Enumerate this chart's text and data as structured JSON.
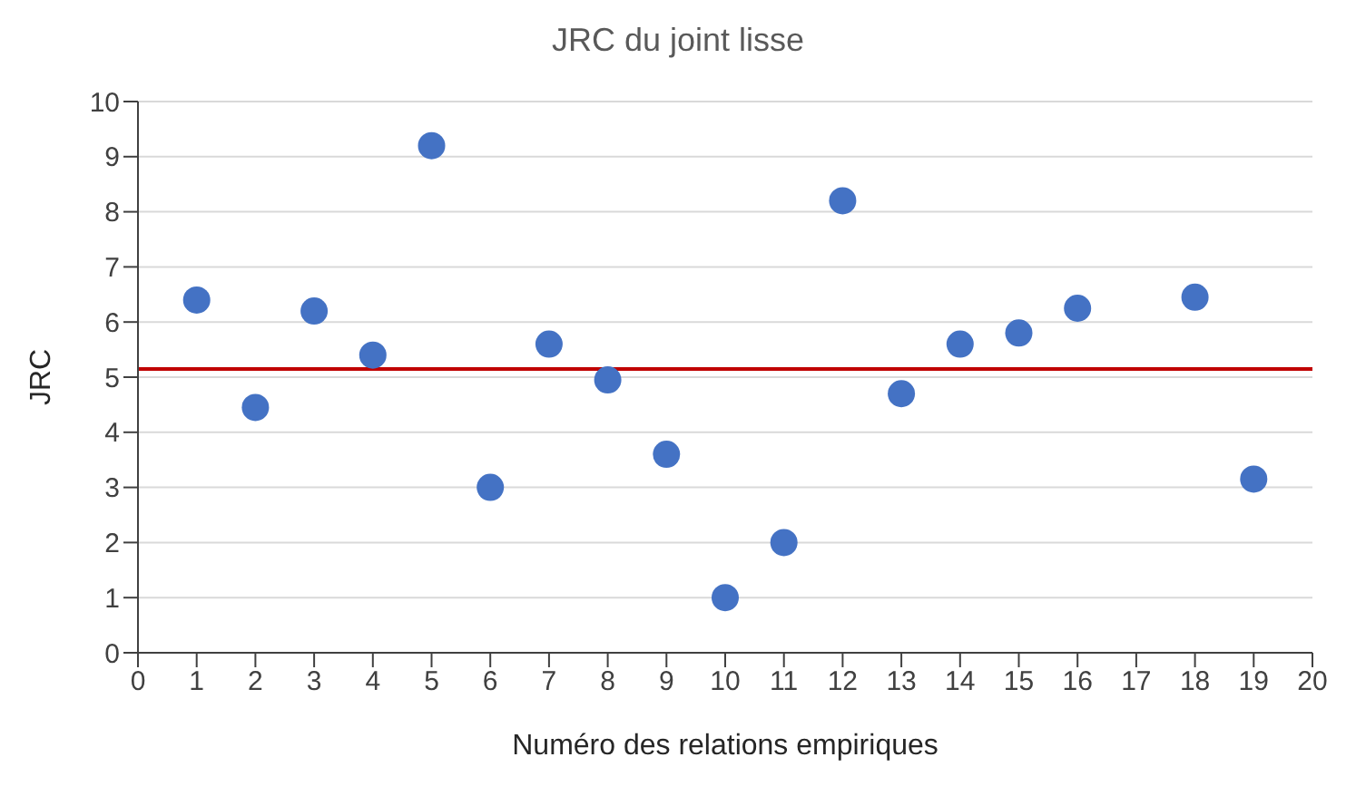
{
  "chart_data": {
    "type": "scatter",
    "title": "JRC du joint lisse",
    "xlabel": "Numéro des relations empiriques",
    "ylabel": "JRC",
    "x": [
      1,
      2,
      3,
      4,
      5,
      6,
      7,
      8,
      9,
      10,
      11,
      12,
      13,
      14,
      15,
      16,
      18,
      19
    ],
    "values": [
      6.4,
      4.45,
      6.2,
      5.4,
      9.2,
      3.0,
      5.6,
      4.95,
      3.6,
      1.0,
      2.0,
      8.2,
      4.7,
      5.6,
      5.8,
      6.25,
      6.45,
      3.15
    ],
    "color": "#4472c4",
    "marker": "circle",
    "xlim": [
      0,
      20
    ],
    "xticks": [
      0,
      1,
      2,
      3,
      4,
      5,
      6,
      7,
      8,
      9,
      10,
      11,
      12,
      13,
      14,
      15,
      16,
      17,
      18,
      19,
      20
    ],
    "ylim": [
      0,
      10
    ],
    "yticks": [
      0,
      1,
      2,
      3,
      4,
      5,
      6,
      7,
      8,
      9,
      10
    ],
    "grid": "y",
    "legend": false,
    "ref_lines": [
      {
        "axis": "y",
        "value": 5.15,
        "color": "#c00000"
      }
    ]
  }
}
